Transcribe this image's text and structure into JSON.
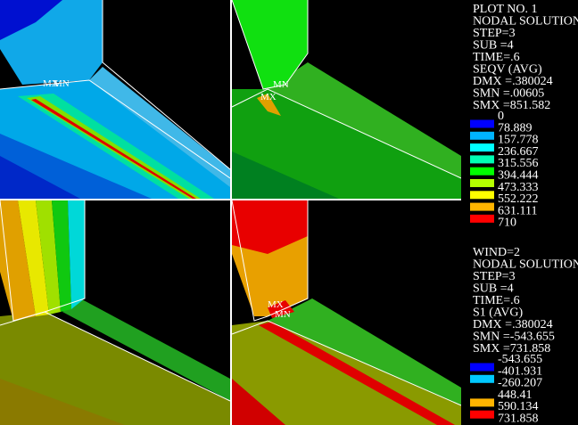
{
  "viewports": [
    {
      "labels": [
        "MX",
        "MN"
      ]
    },
    {
      "labels": [
        "MN",
        "MX"
      ]
    },
    {
      "labels": [],
      "note_free": true
    },
    {
      "labels": [
        "MX",
        "MN"
      ]
    }
  ],
  "panels": [
    {
      "lines": [
        "PLOT NO.   1",
        "NODAL SOLUTION",
        "STEP=3",
        "SUB =4",
        "TIME=.6",
        "SEQV      (AVG)",
        "DMX =.380024",
        "SMN =.00605",
        "SMX =851.582"
      ],
      "legend": [
        "0",
        "78.889",
        "157.778",
        "236.667",
        "315.556",
        "394.444",
        "473.333",
        "552.222",
        "631.111",
        "710"
      ],
      "swatches": [
        "#0000ff",
        "#00b4ff",
        "#00ffff",
        "#00ffb4",
        "#00ff00",
        "#b4ff00",
        "#ffff00",
        "#ffb400",
        "#ff0000"
      ]
    },
    {
      "lines": [
        "WIND=2",
        "NODAL SOLUTION",
        "STEP=3",
        "SUB =4",
        "TIME=.6",
        "S1        (AVG)",
        "DMX =.380024",
        "SMN =-543.655",
        "SMX =731.858"
      ],
      "legend": [
        "-543.655",
        "-401.931",
        "-260.207",
        "448.41",
        "590.134",
        "731.858"
      ],
      "swatches": [
        "#0000ff",
        "#00c8ff",
        null,
        "#ffb400",
        "#ff0000"
      ]
    }
  ]
}
